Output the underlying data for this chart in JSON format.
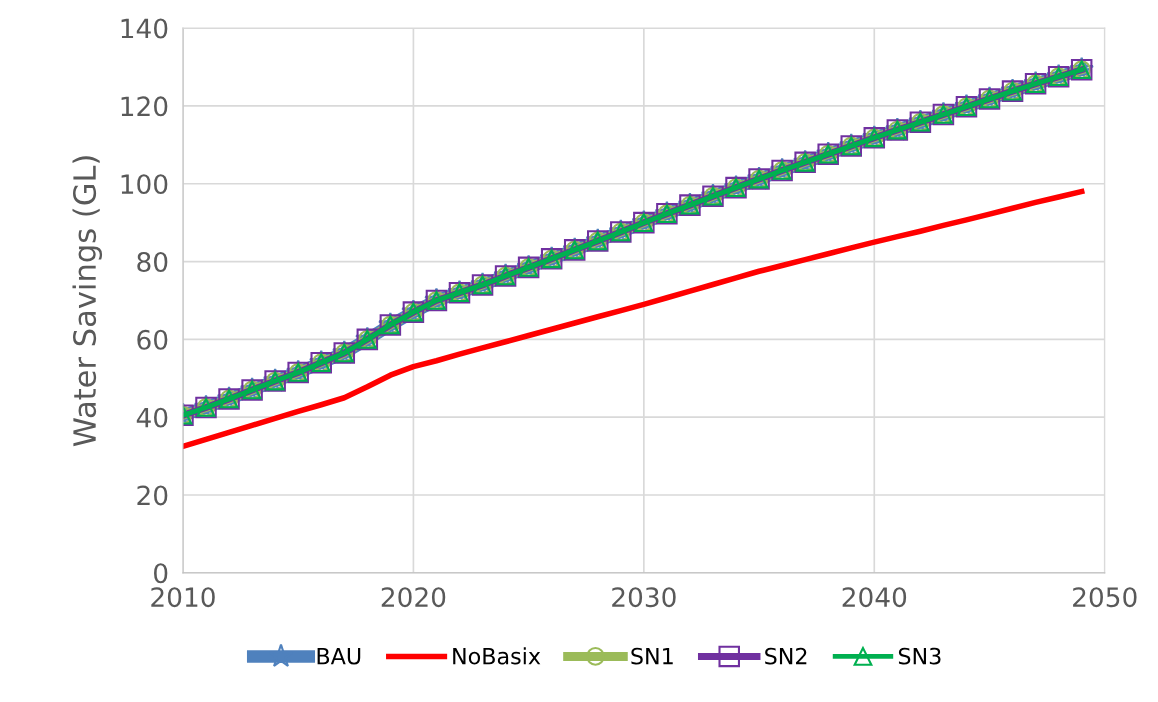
{
  "chart_data": {
    "type": "line",
    "ylabel": "Water Savings (GL)",
    "x": [
      2010,
      2011,
      2012,
      2013,
      2014,
      2015,
      2016,
      2017,
      2018,
      2019,
      2020,
      2021,
      2022,
      2023,
      2024,
      2025,
      2026,
      2027,
      2028,
      2029,
      2030,
      2031,
      2032,
      2033,
      2034,
      2035,
      2036,
      2037,
      2038,
      2039,
      2040,
      2041,
      2042,
      2043,
      2044,
      2045,
      2046,
      2047,
      2048,
      2049
    ],
    "series": [
      {
        "name": "BAU",
        "color": "#4f81bd",
        "marker": "star",
        "values": [
          40.5,
          42.5,
          44.7,
          47,
          49.3,
          51.5,
          54,
          56.5,
          60,
          63.7,
          67,
          70,
          72,
          74,
          76.3,
          78.5,
          80.7,
          83,
          85.3,
          87.6,
          90,
          92.3,
          94.5,
          96.8,
          99,
          101.2,
          103.4,
          105.5,
          107.6,
          109.7,
          111.8,
          113.8,
          115.8,
          117.8,
          119.8,
          121.8,
          123.8,
          125.7,
          127.5,
          129.3
        ]
      },
      {
        "name": "NoBasix",
        "color": "#ff0000",
        "marker": "none",
        "values": [
          32.5,
          34.3,
          36.1,
          37.9,
          39.7,
          41.5,
          43.2,
          45,
          47.8,
          50.8,
          53,
          54.5,
          56.2,
          57.8,
          59.4,
          61,
          62.6,
          64.2,
          65.8,
          67.4,
          69,
          70.7,
          72.4,
          74.1,
          75.8,
          77.5,
          79,
          80.5,
          82,
          83.5,
          85,
          86.4,
          87.8,
          89.3,
          90.7,
          92.2,
          93.7,
          95.2,
          96.6,
          98
        ]
      },
      {
        "name": "SN1",
        "color": "#9bbb59",
        "marker": "circle",
        "values": [
          40.5,
          42.5,
          44.7,
          47,
          49.3,
          51.5,
          54,
          56.5,
          60,
          63.7,
          67,
          70,
          72,
          74,
          76.3,
          78.5,
          80.7,
          83,
          85.3,
          87.6,
          90,
          92.3,
          94.5,
          96.8,
          99,
          101.2,
          103.4,
          105.5,
          107.6,
          109.7,
          111.8,
          113.8,
          115.8,
          117.8,
          119.8,
          121.8,
          123.8,
          125.7,
          127.5,
          129.3
        ]
      },
      {
        "name": "SN2",
        "color": "#7030a0",
        "marker": "square",
        "values": [
          40.5,
          42.5,
          44.7,
          47,
          49.3,
          51.5,
          54,
          56.5,
          60,
          63.7,
          67,
          70,
          72,
          74,
          76.3,
          78.5,
          80.7,
          83,
          85.3,
          87.6,
          90,
          92.3,
          94.5,
          96.8,
          99,
          101.2,
          103.4,
          105.5,
          107.6,
          109.7,
          111.8,
          113.8,
          115.8,
          117.8,
          119.8,
          121.8,
          123.8,
          125.7,
          127.5,
          129.3
        ]
      },
      {
        "name": "SN3",
        "color": "#00b050",
        "marker": "triangle",
        "values": [
          40.5,
          42.5,
          44.7,
          47,
          49.3,
          51.5,
          54,
          56.5,
          60,
          63.7,
          67,
          70,
          72,
          74,
          76.3,
          78.5,
          80.7,
          83,
          85.3,
          87.6,
          90,
          92.3,
          94.5,
          96.8,
          99,
          101.2,
          103.4,
          105.5,
          107.6,
          109.7,
          111.8,
          113.8,
          115.8,
          117.8,
          119.8,
          121.8,
          123.8,
          125.7,
          127.5,
          129.3
        ]
      }
    ],
    "xlim": [
      2010,
      2050
    ],
    "xticks": [
      2010,
      2020,
      2030,
      2040,
      2050
    ],
    "ylim": [
      0,
      140
    ],
    "yticks": [
      0,
      20,
      40,
      60,
      80,
      100,
      120,
      140
    ],
    "grid": true,
    "legend": "bottom",
    "line_style": "solid"
  }
}
